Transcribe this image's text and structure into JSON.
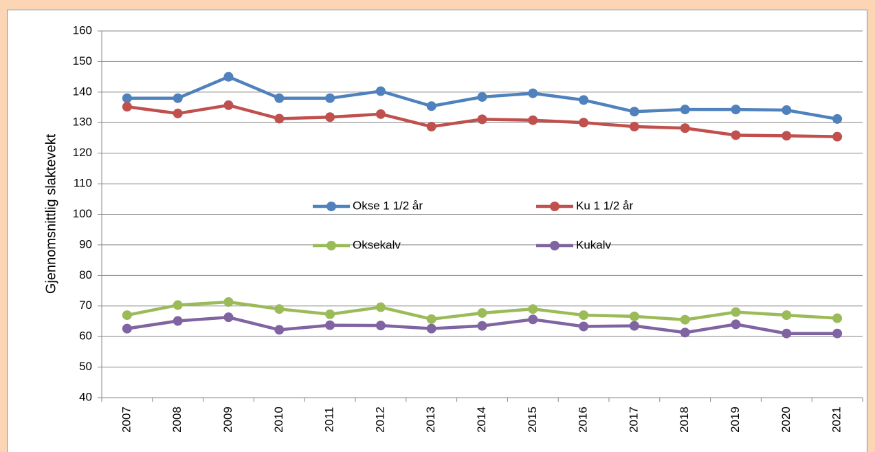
{
  "chart_data": {
    "type": "line",
    "y_label": "Gjennomsnittlig slaktevekt",
    "categories": [
      "2007",
      "2008",
      "2009",
      "2010",
      "2011",
      "2012",
      "2013",
      "2014",
      "2015",
      "2016",
      "2017",
      "2018",
      "2019",
      "2020",
      "2021"
    ],
    "series": [
      {
        "name": "Okse 1 1/2 år",
        "color": "#4f81bd",
        "values": [
          138,
          138,
          145,
          138,
          138,
          140.3,
          135.4,
          138.4,
          139.6,
          137.4,
          133.6,
          134.3,
          134.3,
          134.1,
          131.2
        ]
      },
      {
        "name": "Ku 1 1/2 år",
        "color": "#c0504d",
        "values": [
          135.2,
          133,
          135.7,
          131.3,
          131.8,
          132.8,
          128.7,
          131.1,
          130.8,
          130,
          128.7,
          128.2,
          125.9,
          125.7,
          125.4
        ]
      },
      {
        "name": "Oksekalv",
        "color": "#9bbb59",
        "values": [
          67,
          70.3,
          71.3,
          69,
          67.3,
          69.6,
          65.7,
          67.7,
          69,
          67,
          66.6,
          65.5,
          68,
          67,
          66
        ]
      },
      {
        "name": "Kukalv",
        "color": "#8064a2",
        "values": [
          62.6,
          65.1,
          66.3,
          62.2,
          63.7,
          63.6,
          62.6,
          63.5,
          65.6,
          63.3,
          63.5,
          61.3,
          64,
          61,
          61
        ]
      }
    ],
    "ylim": [
      40,
      160
    ],
    "yticks": [
      40,
      50,
      60,
      70,
      80,
      90,
      100,
      110,
      120,
      130,
      140,
      150,
      160
    ],
    "grid": true,
    "legend": "center"
  }
}
